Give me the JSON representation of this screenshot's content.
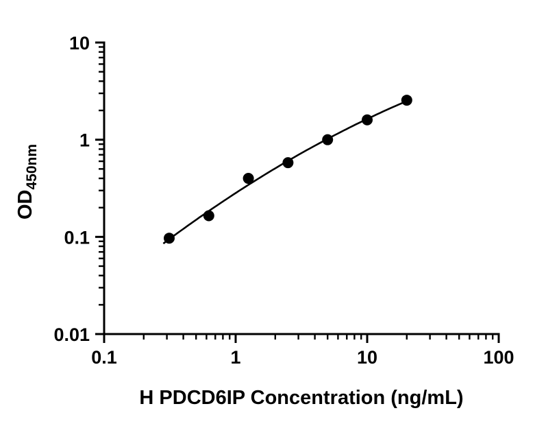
{
  "chart_data": {
    "type": "scatter",
    "title": "",
    "xlabel": "H PDCD6IP Concentration (ng/mL)",
    "ylabel": "OD",
    "ylabel_sub": "450nm",
    "xscale": "log",
    "yscale": "log",
    "xlim": [
      0.1,
      100
    ],
    "ylim": [
      0.01,
      10
    ],
    "x_ticks": [
      0.1,
      1,
      10,
      100
    ],
    "x_tick_labels": [
      "0.1",
      "1",
      "10",
      "100"
    ],
    "y_ticks": [
      0.01,
      0.1,
      1,
      10
    ],
    "y_tick_labels": [
      "0.01",
      "0.1",
      "1",
      "10"
    ],
    "x": [
      0.3125,
      0.625,
      1.25,
      2.5,
      5,
      10,
      20
    ],
    "y": [
      0.097,
      0.165,
      0.4,
      0.58,
      1.0,
      1.6,
      2.55
    ],
    "curve": "smooth fit through points",
    "grid": false,
    "legend": "none",
    "marker_color": "#000000",
    "line_color": "#000000",
    "axis_color": "#000000",
    "background_color": "#ffffff"
  }
}
